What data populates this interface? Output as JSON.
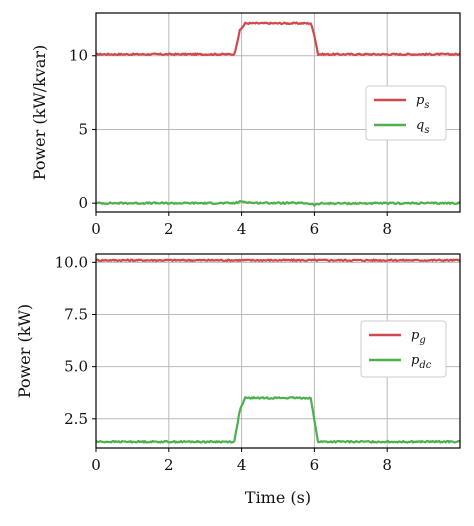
{
  "colors": {
    "red": "#d1494a",
    "green": "#4cb04c"
  },
  "chart_data": [
    {
      "type": "line",
      "xlabel": "",
      "ylabel": "Power (kW/kvar)",
      "xlim": [
        0,
        10
      ],
      "ylim": [
        -0.6,
        12.9
      ],
      "xticks": [
        0,
        2,
        4,
        6,
        8
      ],
      "xtick_labels": [
        "0",
        "2",
        "4",
        "6",
        "8"
      ],
      "yticks": [
        0,
        5,
        10
      ],
      "ytick_labels": [
        "0",
        "5",
        "10"
      ],
      "grid": true,
      "legend_position": "center-right",
      "series": [
        {
          "name": "p",
          "subscript": "s",
          "color": "#d1494a",
          "x": [
            0,
            3.8,
            3.95,
            4.1,
            5.9,
            6.0,
            6.1,
            10
          ],
          "y": [
            10.1,
            10.1,
            11.7,
            12.2,
            12.2,
            11.4,
            10.1,
            10.1
          ]
        },
        {
          "name": "q",
          "subscript": "s",
          "color": "#4cb04c",
          "x": [
            0,
            3.8,
            4.0,
            4.3,
            5.8,
            6.0,
            6.2,
            10
          ],
          "y": [
            0,
            0,
            0.12,
            0.02,
            0,
            -0.12,
            -0.02,
            0
          ]
        }
      ]
    },
    {
      "type": "line",
      "xlabel": "Time (s)",
      "ylabel": "Power (kW)",
      "xlim": [
        0,
        10
      ],
      "ylim": [
        1.1,
        10.4
      ],
      "xticks": [
        0,
        2,
        4,
        6,
        8
      ],
      "xtick_labels": [
        "0",
        "2",
        "4",
        "6",
        "8"
      ],
      "yticks": [
        2.5,
        5.0,
        7.5,
        10.0
      ],
      "ytick_labels": [
        "2.5",
        "5.0",
        "7.5",
        "10.0"
      ],
      "grid": true,
      "legend_position": "center-right",
      "series": [
        {
          "name": "p",
          "subscript": "g",
          "color": "#d1494a",
          "x": [
            0,
            10
          ],
          "y": [
            10.1,
            10.1
          ]
        },
        {
          "name": "p",
          "subscript": "dc",
          "color": "#4cb04c",
          "x": [
            0,
            3.8,
            3.95,
            4.1,
            5.9,
            6.0,
            6.1,
            10
          ],
          "y": [
            1.4,
            1.4,
            2.9,
            3.5,
            3.5,
            2.4,
            1.4,
            1.4
          ]
        }
      ]
    }
  ]
}
